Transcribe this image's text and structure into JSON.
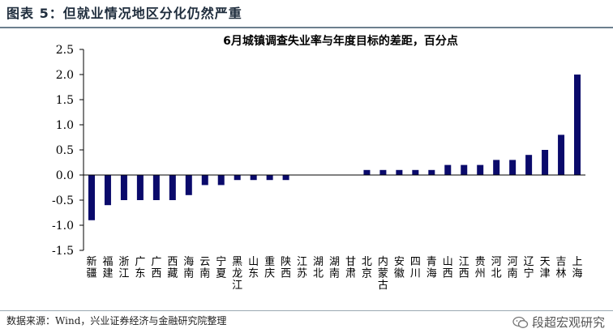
{
  "figure": {
    "title": "图表 5：但就业情况地区分化仍然严重",
    "source": "数据来源：Wind，兴业证券经济与金融研究院整理",
    "watermark": "段超宏观研究"
  },
  "colors": {
    "bar": "#0a0a6b",
    "title_rule": "#6b7f8e",
    "axis": "#000000"
  },
  "chart_data": {
    "type": "bar",
    "title": "6月城镇调查失业率与年度目标的差距，百分点",
    "xlabel": "",
    "ylabel": "",
    "ylim": [
      -1.5,
      2.5
    ],
    "yticks": [
      -1.5,
      -1.0,
      -0.5,
      0.0,
      0.5,
      1.0,
      1.5,
      2.0,
      2.5
    ],
    "ytick_labels": [
      "-1.5",
      "-1.0",
      "-0.5",
      "0.0",
      "0.5",
      "1.0",
      "1.5",
      "2.0",
      "2.5"
    ],
    "grid": false,
    "legend": "none",
    "categories": [
      "新疆",
      "福建",
      "浙江",
      "广东",
      "广西",
      "西藏",
      "海南",
      "云南",
      "宁夏",
      "黑龙江",
      "山东",
      "重庆",
      "陕西",
      "江苏",
      "湖北",
      "湖南",
      "甘肃",
      "北京",
      "内蒙古",
      "安徽",
      "四川",
      "青海",
      "山西",
      "江西",
      "贵州",
      "河北",
      "河南",
      "辽宁",
      "天津",
      "吉林",
      "上海"
    ],
    "values": [
      -0.9,
      -0.6,
      -0.5,
      -0.5,
      -0.5,
      -0.5,
      -0.4,
      -0.2,
      -0.2,
      -0.1,
      -0.1,
      -0.1,
      -0.1,
      0.0,
      0.0,
      0.0,
      0.0,
      0.1,
      0.1,
      0.1,
      0.1,
      0.1,
      0.2,
      0.2,
      0.2,
      0.3,
      0.3,
      0.4,
      0.5,
      0.8,
      2.0
    ]
  }
}
